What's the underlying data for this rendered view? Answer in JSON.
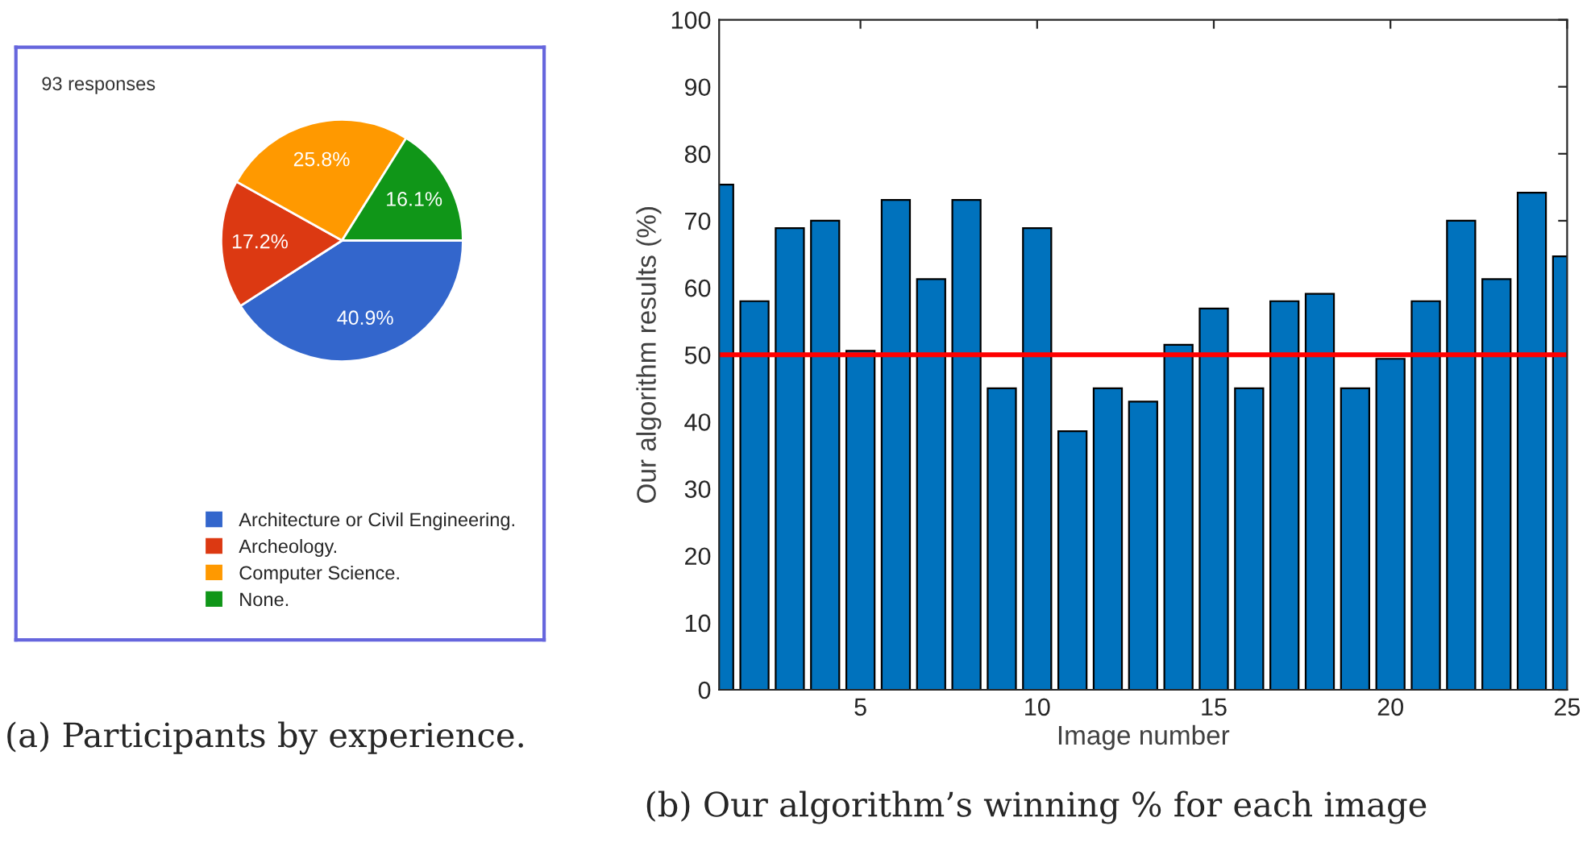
{
  "chart_data": [
    {
      "type": "pie",
      "categories": [
        "Architecture or Civil Engineering.",
        "Archeology.",
        "Computer Science.",
        "None."
      ],
      "values": [
        40.9,
        17.2,
        25.8,
        16.1
      ],
      "colors": [
        "#3366cc",
        "#dc3912",
        "#ff9900",
        "#109618"
      ],
      "value_labels": [
        "40.9%",
        "17.2%",
        "25.8%",
        "16.1%"
      ],
      "legend": "bottom right",
      "annotations": [
        "93 responses",
        "(a) Participants by experience."
      ]
    },
    {
      "type": "bar",
      "x": [
        1,
        2,
        3,
        4,
        5,
        6,
        7,
        8,
        9,
        10,
        11,
        12,
        13,
        14,
        15,
        16,
        17,
        18,
        19,
        20,
        21,
        22,
        23,
        24,
        25
      ],
      "values": [
        75.4,
        58,
        68.9,
        70,
        50.6,
        73.1,
        61.3,
        73.1,
        45,
        68.9,
        38.6,
        45,
        43,
        51.5,
        56.9,
        45,
        58,
        59.1,
        45,
        49.4,
        58,
        70,
        61.3,
        74.2,
        64.7
      ],
      "color": "#0072bd",
      "xlim": [
        1,
        25
      ],
      "xticks": [
        5,
        10,
        15,
        20,
        25
      ],
      "ylim": [
        0,
        100
      ],
      "yticks": [
        0,
        10,
        20,
        30,
        40,
        50,
        60,
        70,
        80,
        90,
        100
      ],
      "xlabel": "Image number",
      "ylabel": "Our algorithm results (%)",
      "grid": false,
      "ref_lines": [
        {
          "axis": "y",
          "value": 50,
          "color": "#ff0000",
          "line_style": "solid"
        }
      ],
      "annotations": [
        "(b) Our algorithm’s winning % for each image"
      ]
    }
  ]
}
